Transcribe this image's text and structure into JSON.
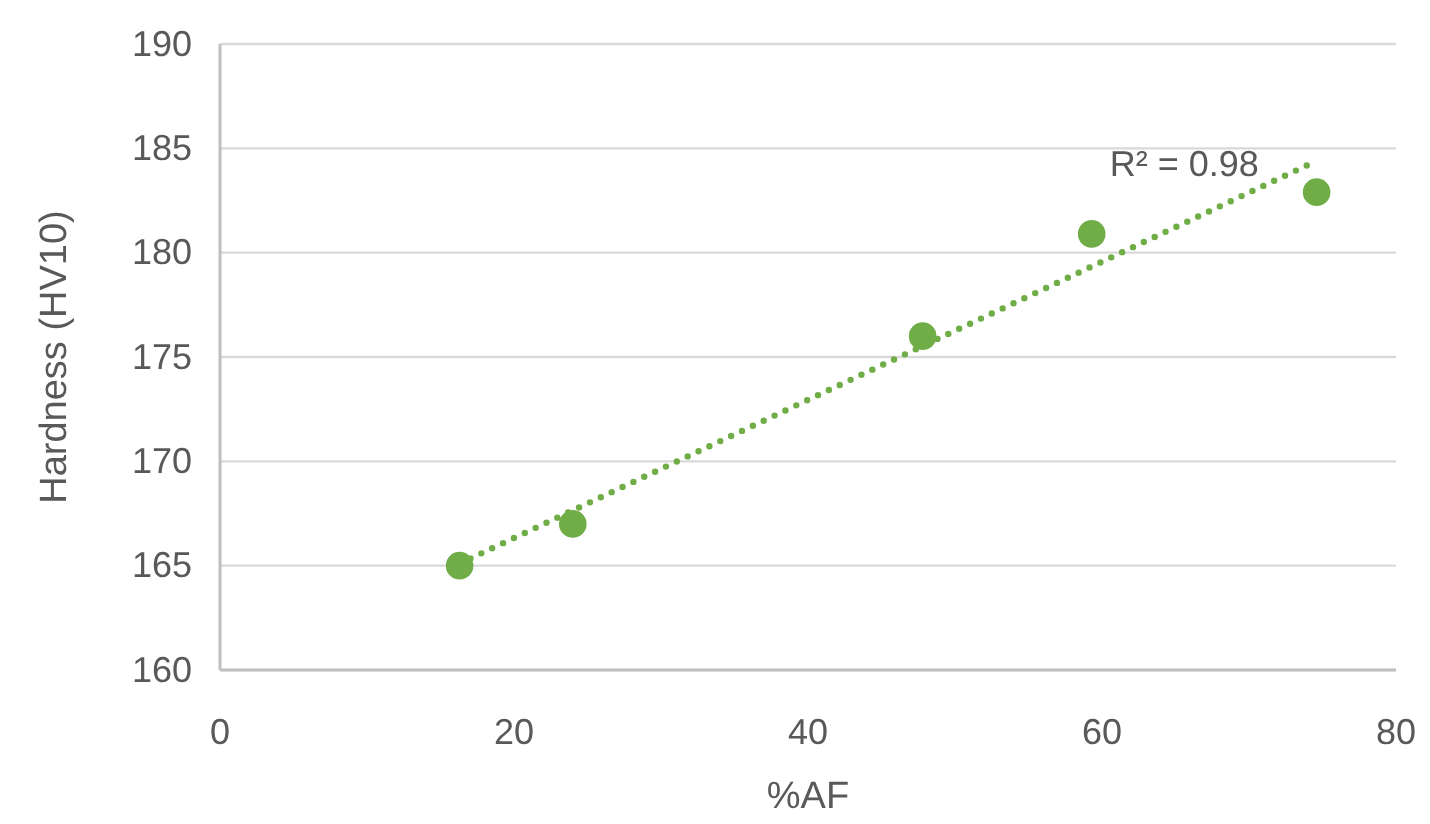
{
  "chart_data": {
    "type": "scatter",
    "xlabel": "%AF",
    "ylabel": "Hardness (HV10)",
    "x": [
      16.3,
      24.0,
      47.8,
      59.3,
      74.6
    ],
    "series": [
      {
        "color": "#70ad47",
        "values": [
          165.0,
          167.0,
          176.0,
          180.9,
          182.9
        ],
        "marker": "circle"
      },
      {
        "type": "line",
        "color": "#70ad47",
        "x": [
          16.3,
          74.6
        ],
        "values": [
          165.1,
          184.4
        ],
        "line_style": "dotted",
        "marker": "none"
      }
    ],
    "annotations": [
      "R² = 0.98"
    ],
    "xlim": [
      0,
      80
    ],
    "xticks": [
      0,
      20,
      40,
      60,
      80
    ],
    "ylim": [
      160,
      190
    ],
    "yticks": [
      160,
      165,
      170,
      175,
      180,
      185,
      190
    ],
    "grid": "y"
  }
}
